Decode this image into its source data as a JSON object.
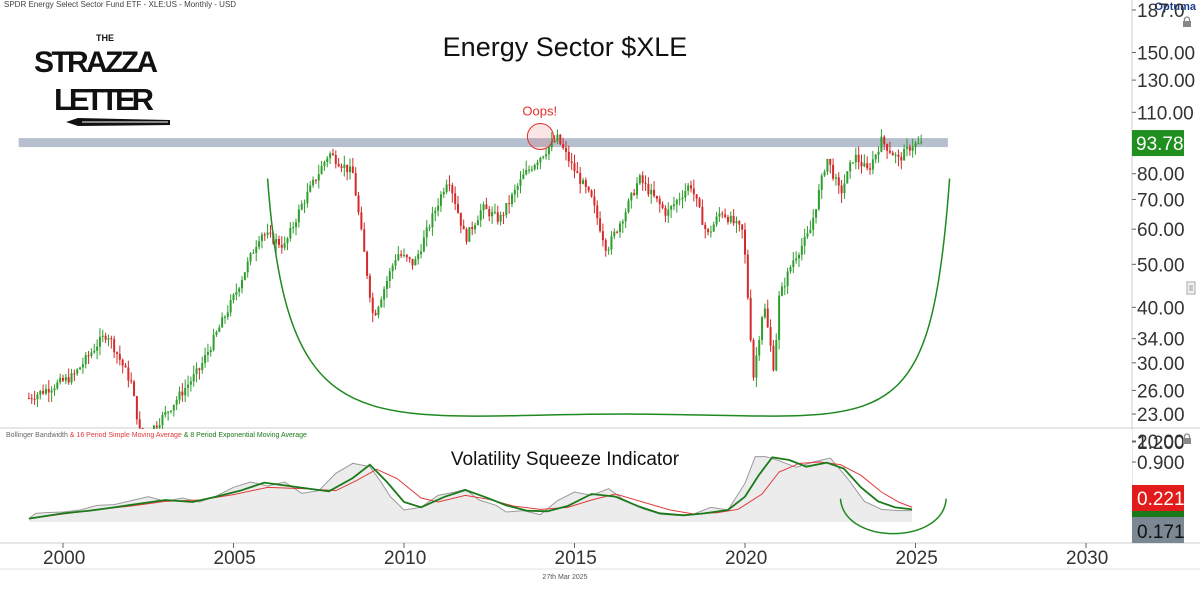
{
  "header": {
    "instrument": "SPDR Energy Select Sector Fund ETF - XLE:US - Monthly - USD",
    "brand": "Optuma"
  },
  "logo": {
    "line1": "THE",
    "line2": "STRAZZA",
    "line3": "LETTER"
  },
  "colors": {
    "up": "#2e9e2e",
    "down": "#d42a2a",
    "arc": "#1f8a1f",
    "resistance": "#a9b4c6",
    "bandwidth": "#9a9a9a",
    "sma": "#e23b3b",
    "ema": "#1a7a1a",
    "last_price": "#1f8f1f",
    "last_sma": "#e21b1b",
    "last_bw": "#7b8894",
    "oops": "#e0302a"
  },
  "chart_data": [
    {
      "type": "candlestick",
      "title": "Energy Sector $XLE",
      "scale": "log",
      "y_ticks": [
        "20.00",
        "23.00",
        "26.00",
        "30.00",
        "34.00",
        "40.00",
        "50.00",
        "60.00",
        "70.00",
        "80.00",
        "93.78",
        "110.00",
        "130.00",
        "150.00",
        "187.0"
      ],
      "y_tick_values": [
        20,
        23,
        26,
        30,
        34,
        40,
        50,
        60,
        70,
        80,
        93.78,
        110,
        130,
        150,
        187
      ],
      "last_price": "93.78",
      "annotation": "Oops!",
      "resistance_level": 94,
      "anchors": [
        [
          1999.0,
          25
        ],
        [
          2000.3,
          28
        ],
        [
          2001.0,
          33
        ],
        [
          2001.3,
          35
        ],
        [
          2002.0,
          27
        ],
        [
          2002.3,
          20
        ],
        [
          2003.0,
          23
        ],
        [
          2004.0,
          29
        ],
        [
          2005.0,
          42
        ],
        [
          2005.8,
          59
        ],
        [
          2006.5,
          55
        ],
        [
          2007.0,
          68
        ],
        [
          2007.8,
          89
        ],
        [
          2008.5,
          80
        ],
        [
          2009.1,
          38
        ],
        [
          2009.8,
          53
        ],
        [
          2010.3,
          50
        ],
        [
          2011.3,
          79
        ],
        [
          2011.8,
          57
        ],
        [
          2012.3,
          67
        ],
        [
          2012.8,
          63
        ],
        [
          2013.5,
          79
        ],
        [
          2013.9,
          86
        ],
        [
          2014.5,
          96
        ],
        [
          2014.9,
          84
        ],
        [
          2015.5,
          70
        ],
        [
          2015.95,
          54
        ],
        [
          2016.5,
          66
        ],
        [
          2016.9,
          78
        ],
        [
          2017.7,
          65
        ],
        [
          2018.4,
          76
        ],
        [
          2018.9,
          58
        ],
        [
          2019.3,
          66
        ],
        [
          2019.95,
          59
        ],
        [
          2020.25,
          28
        ],
        [
          2020.55,
          41
        ],
        [
          2020.85,
          29
        ],
        [
          2021.0,
          42
        ],
        [
          2021.4,
          51
        ],
        [
          2021.9,
          59
        ],
        [
          2022.4,
          87
        ],
        [
          2022.8,
          72
        ],
        [
          2023.2,
          88
        ],
        [
          2023.6,
          81
        ],
        [
          2024.0,
          95
        ],
        [
          2024.5,
          86
        ],
        [
          2024.9,
          93
        ]
      ],
      "arc": {
        "start_year": 2006.0,
        "start_price": 78,
        "bottom_year": 2016.5,
        "bottom_price": 23,
        "end_year": 2026.0,
        "end_price": 78
      }
    },
    {
      "type": "line",
      "title": "Volatility Squeeze Indicator",
      "legend": "Bollinger Bandwidth & 16 Period Simple Moving Average & 8 Period Exponential Moving Average",
      "legend_parts": [
        "Bollinger Bandwidth",
        "& 16 Period Simple Moving Average",
        "& 8 Period Exponential Moving Average"
      ],
      "y_ticks": [
        "0.900",
        "1.200"
      ],
      "y_tick_values": [
        0.9,
        1.2
      ],
      "last_values": {
        "sma": "0.221",
        "bandwidth": "0.171"
      },
      "series": [
        {
          "name": "Bollinger Bandwidth",
          "x": [
            1999.0,
            1999.2,
            1999.5,
            2000.0,
            2000.5,
            2001.0,
            2001.5,
            2002.0,
            2002.5,
            2003.0,
            2003.5,
            2004.0,
            2004.5,
            2005.0,
            2005.5,
            2006.0,
            2006.5,
            2007.0,
            2007.5,
            2008.0,
            2008.5,
            2009.0,
            2009.3,
            2009.6,
            2010.0,
            2010.5,
            2011.0,
            2011.5,
            2011.8,
            2012.2,
            2012.7,
            2013.0,
            2013.5,
            2014.0,
            2014.5,
            2015.0,
            2015.5,
            2016.0,
            2016.4,
            2017.0,
            2017.5,
            2018.0,
            2018.5,
            2019.0,
            2019.5,
            2020.0,
            2020.3,
            2020.6,
            2021.0,
            2021.5,
            2022.0,
            2022.5,
            2023.0,
            2023.5,
            2024.0,
            2024.5,
            2024.9
          ],
          "y": [
            0.05,
            0.13,
            0.14,
            0.15,
            0.18,
            0.25,
            0.26,
            0.32,
            0.38,
            0.31,
            0.36,
            0.3,
            0.39,
            0.52,
            0.6,
            0.54,
            0.6,
            0.43,
            0.47,
            0.73,
            0.88,
            0.83,
            0.62,
            0.38,
            0.18,
            0.22,
            0.4,
            0.45,
            0.49,
            0.33,
            0.25,
            0.15,
            0.17,
            0.11,
            0.32,
            0.45,
            0.4,
            0.5,
            0.35,
            0.2,
            0.12,
            0.1,
            0.12,
            0.22,
            0.18,
            0.58,
            0.98,
            0.98,
            0.92,
            0.82,
            0.9,
            0.96,
            0.66,
            0.31,
            0.19,
            0.17,
            0.17
          ]
        },
        {
          "name": "16 Period Simple Moving Average",
          "x": [
            1999.0,
            2000.0,
            2001.0,
            2002.0,
            2003.0,
            2004.0,
            2005.0,
            2006.0,
            2007.0,
            2008.0,
            2008.6,
            2009.2,
            2009.8,
            2010.5,
            2011.0,
            2011.8,
            2012.5,
            2013.2,
            2014.0,
            2014.8,
            2015.5,
            2016.2,
            2017.0,
            2017.8,
            2018.5,
            2019.2,
            2019.8,
            2020.5,
            2021.0,
            2021.6,
            2022.2,
            2022.8,
            2023.4,
            2024.0,
            2024.5,
            2024.9
          ],
          "y": [
            0.05,
            0.12,
            0.19,
            0.24,
            0.31,
            0.33,
            0.41,
            0.52,
            0.5,
            0.47,
            0.62,
            0.79,
            0.65,
            0.36,
            0.3,
            0.4,
            0.34,
            0.24,
            0.19,
            0.22,
            0.33,
            0.42,
            0.3,
            0.18,
            0.12,
            0.14,
            0.19,
            0.42,
            0.75,
            0.88,
            0.9,
            0.86,
            0.7,
            0.45,
            0.3,
            0.221
          ]
        },
        {
          "name": "8 Period Exponential Moving Average",
          "x": [
            1999.0,
            2000.0,
            2000.8,
            2001.5,
            2002.3,
            2003.0,
            2003.8,
            2004.5,
            2005.2,
            2005.9,
            2006.5,
            2007.2,
            2007.8,
            2008.5,
            2009.0,
            2009.5,
            2010.0,
            2010.5,
            2011.2,
            2011.8,
            2012.4,
            2013.0,
            2013.6,
            2014.2,
            2014.8,
            2015.5,
            2016.2,
            2016.9,
            2017.5,
            2018.2,
            2018.8,
            2019.5,
            2020.0,
            2020.4,
            2020.8,
            2021.3,
            2021.8,
            2022.4,
            2022.9,
            2023.4,
            2023.9,
            2024.4,
            2024.9
          ],
          "y": [
            0.05,
            0.13,
            0.17,
            0.22,
            0.28,
            0.33,
            0.3,
            0.38,
            0.47,
            0.59,
            0.55,
            0.5,
            0.46,
            0.66,
            0.86,
            0.6,
            0.3,
            0.22,
            0.38,
            0.48,
            0.37,
            0.25,
            0.17,
            0.16,
            0.24,
            0.42,
            0.38,
            0.23,
            0.13,
            0.1,
            0.13,
            0.18,
            0.38,
            0.7,
            0.97,
            0.93,
            0.83,
            0.89,
            0.8,
            0.52,
            0.31,
            0.22,
            0.19
          ]
        }
      ]
    }
  ],
  "x_axis": {
    "ticks": [
      "2000",
      "2005",
      "2010",
      "2015",
      "2020",
      "2025",
      "2030"
    ],
    "tick_values": [
      2000,
      2005,
      2010,
      2015,
      2020,
      2025,
      2030
    ]
  },
  "footer": {
    "date": "27th Mar 2025"
  }
}
